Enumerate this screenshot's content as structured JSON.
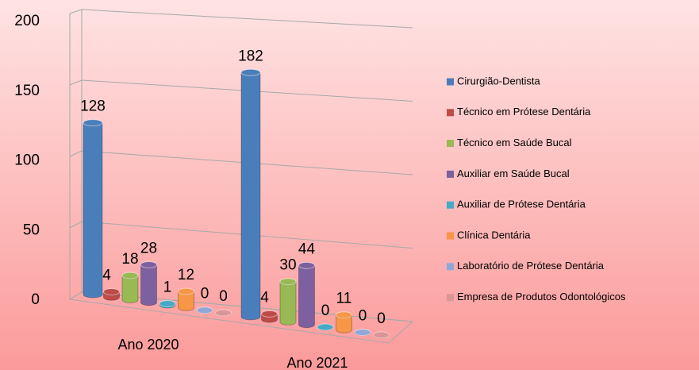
{
  "chart_data": {
    "type": "bar3d",
    "categories": [
      "Ano 2020",
      "Ano 2021"
    ],
    "series": [
      {
        "name": "Cirurgião-Dentista",
        "color": "#4a7ebb",
        "values": [
          128,
          182
        ]
      },
      {
        "name": "Técnico em Prótese Dentária",
        "color": "#be4b48",
        "values": [
          4,
          4
        ]
      },
      {
        "name": "Técnico em Saúde Bucal",
        "color": "#98b954",
        "values": [
          18,
          30
        ]
      },
      {
        "name": "Auxiliar em Saúde Bucal",
        "color": "#7d60a0",
        "values": [
          28,
          44
        ]
      },
      {
        "name": "Auxiliar de Prótese Dentária",
        "color": "#46aac5",
        "values": [
          1,
          0
        ]
      },
      {
        "name": "Clínica Dentária",
        "color": "#f79646",
        "values": [
          12,
          11
        ]
      },
      {
        "name": "Laboratório de Prótese Dentária",
        "color": "#8fa8d8",
        "values": [
          0,
          0
        ]
      },
      {
        "name": "Empresa de Produtos Odontológicos",
        "color": "#d99694",
        "values": [
          0,
          0
        ]
      }
    ],
    "ylim": [
      0,
      200
    ],
    "yticks": [
      0,
      50,
      100,
      150,
      200
    ],
    "grid": true,
    "legend": "right"
  }
}
